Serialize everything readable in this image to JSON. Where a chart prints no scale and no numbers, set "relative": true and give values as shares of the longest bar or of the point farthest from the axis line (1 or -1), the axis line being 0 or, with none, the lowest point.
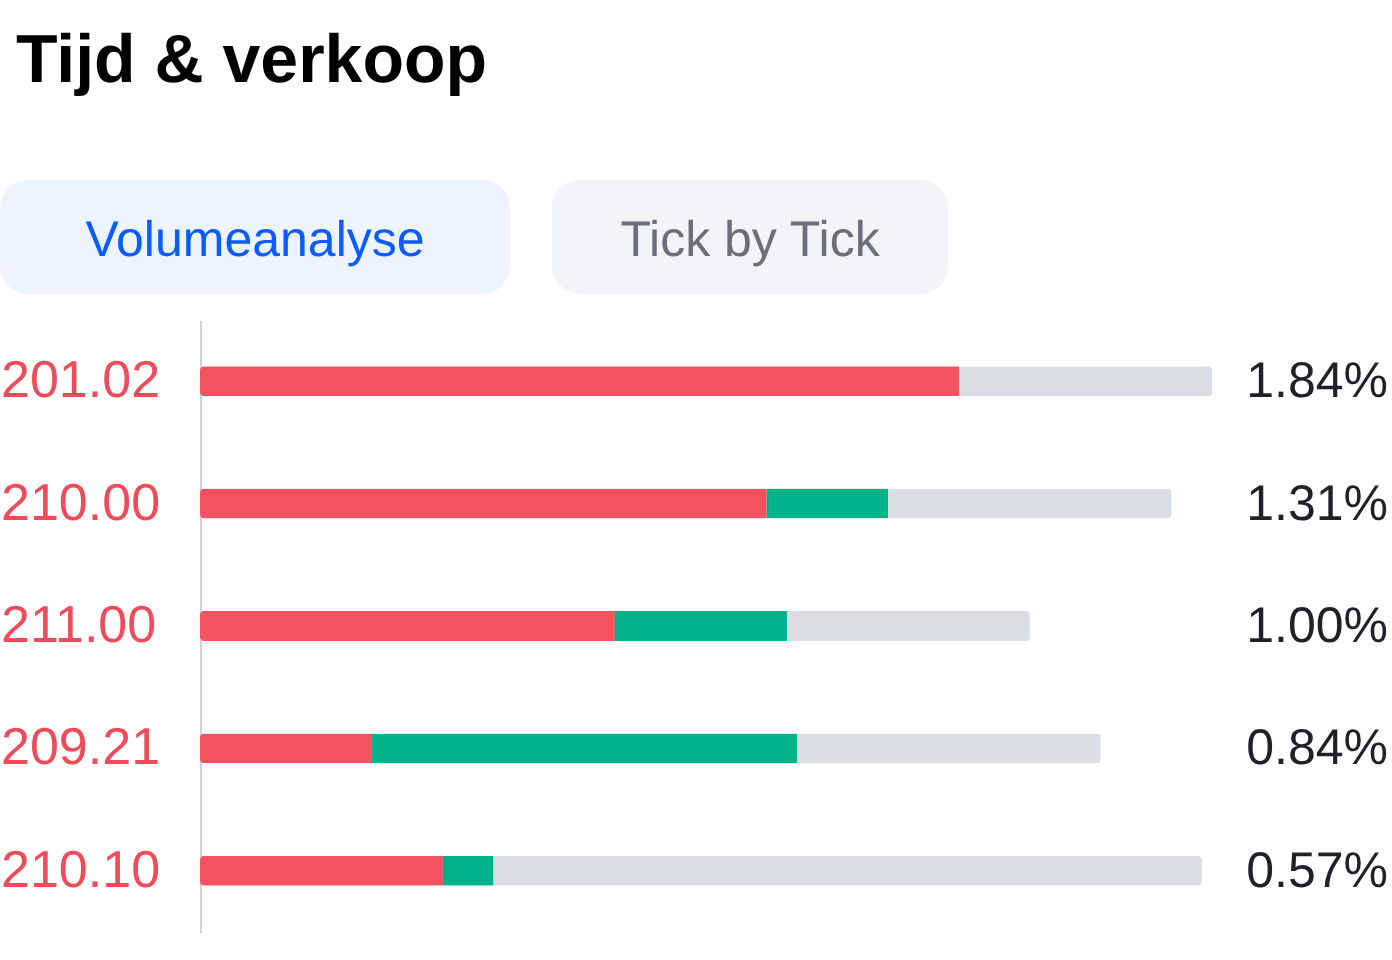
{
  "chart_data": {
    "type": "bar",
    "orientation": "horizontal",
    "stacked": true,
    "relative": true,
    "title": "Tijd & verkoop",
    "annotations": [
      "Volumeanalyse",
      "Tick by Tick",
      "1.84%",
      "1.31%",
      "1.00%",
      "0.84%",
      "0.57%"
    ],
    "categories": [
      "201.02",
      "210.00",
      "211.00",
      "209.21",
      "210.10"
    ],
    "series": [
      {
        "color": "#f4525f",
        "values": [
          0.75,
          0.56,
          0.41,
          0.17,
          0.24
        ]
      },
      {
        "color": "#00b38b",
        "values": [
          null,
          0.12,
          0.17,
          0.42,
          0.05
        ]
      },
      {
        "color": "#dadde1",
        "values": [
          0.25,
          0.28,
          0.24,
          0.3,
          0.7
        ]
      }
    ]
  }
}
